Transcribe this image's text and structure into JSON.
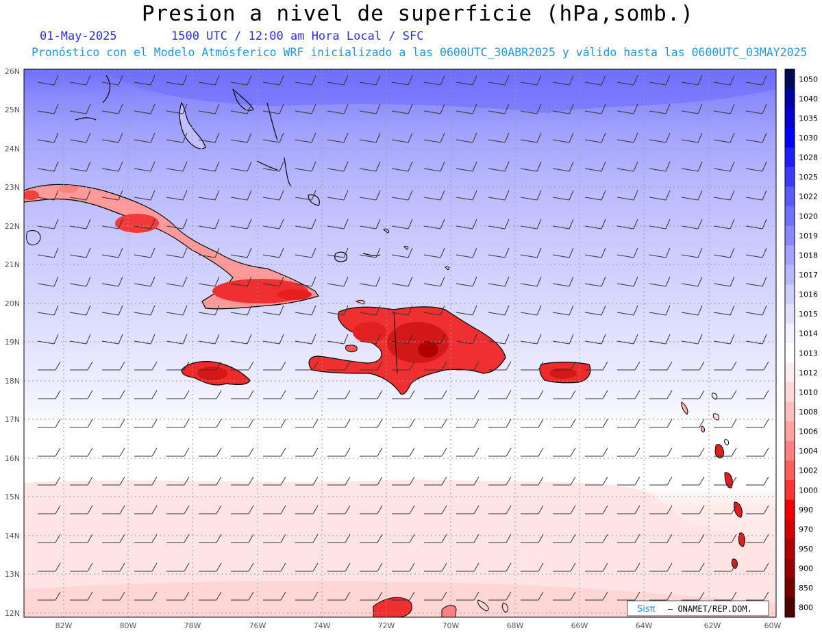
{
  "header": {
    "title": "Presion a nivel de superficie (hPa,somb.)",
    "date": "01-May-2025",
    "time_info": "1500 UTC / 12:00 am Hora Local / SFC",
    "subtitle": "Pronóstico con el Modelo Atmósferico WRF inicializado a las 0600UTC_30ABR2025 y válido hasta las  0600UTC_03MAY2025"
  },
  "map": {
    "region": "Caribbean",
    "lon_range": [
      -83.2,
      -60
    ],
    "lat_range": [
      11.8,
      26.1
    ],
    "lat_labels": [
      "26N",
      "25N",
      "24N",
      "23N",
      "22N",
      "21N",
      "20N",
      "19N",
      "18N",
      "17N",
      "16N",
      "15N",
      "14N",
      "13N",
      "12N"
    ],
    "lon_labels": [
      "82W",
      "80W",
      "78W",
      "76W",
      "74W",
      "72W",
      "70W",
      "68W",
      "66W",
      "64W",
      "62W",
      "60W"
    ],
    "land_color": "#ff2a2a",
    "coast_color": "#000000"
  },
  "colorbar": {
    "levels": [
      "1050",
      "1040",
      "1035",
      "1030",
      "1028",
      "1025",
      "1022",
      "1020",
      "1019",
      "1018",
      "1017",
      "1016",
      "1015",
      "1014",
      "1013",
      "1012",
      "1010",
      "1008",
      "1006",
      "1004",
      "1002",
      "1000",
      "990",
      "970",
      "950",
      "900",
      "850",
      "800"
    ],
    "colors": [
      "#000a55",
      "#0000a8",
      "#0000d2",
      "#0000ff",
      "#1e1eff",
      "#3c3cff",
      "#5a5aff",
      "#7070ff",
      "#8888ff",
      "#a2a2ff",
      "#b8b8ff",
      "#cdcdff",
      "#e0e0ff",
      "#f1f1ff",
      "#ffffff",
      "#ffeded",
      "#ffd8d8",
      "#ffbebe",
      "#ffa2a2",
      "#ff8080",
      "#ff5c5c",
      "#ff3535",
      "#f00000",
      "#d40000",
      "#b40000",
      "#960000",
      "#760000",
      "#4e0000"
    ]
  },
  "credit": {
    "logo": "Sisπ",
    "text": "– ONAMET/REP.DOM."
  }
}
